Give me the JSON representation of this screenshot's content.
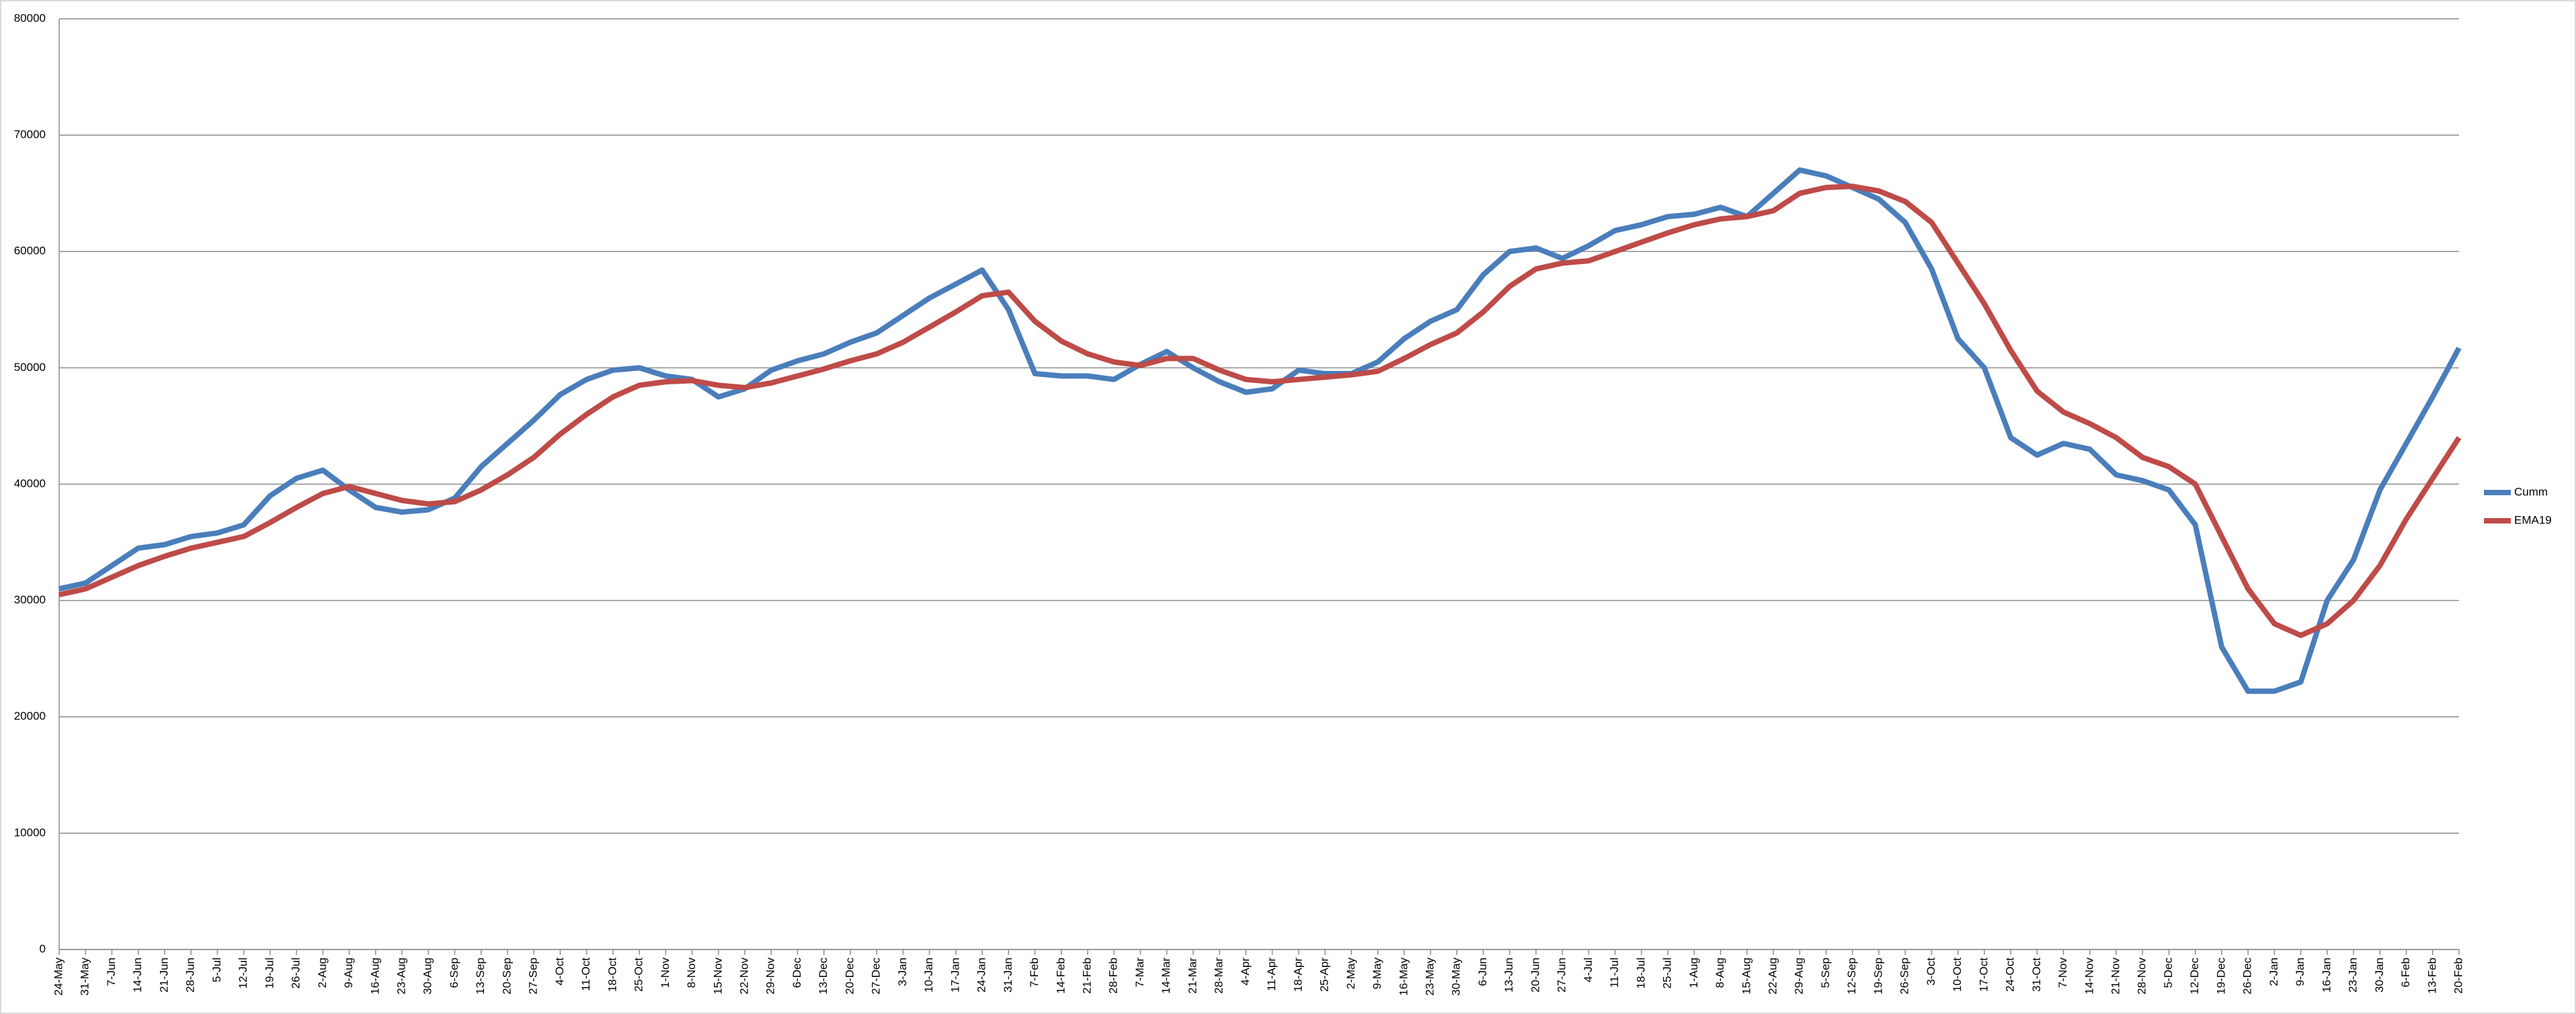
{
  "chart_data": {
    "type": "line",
    "categories": [
      "24-May",
      "31-May",
      "7-Jun",
      "14-Jun",
      "21-Jun",
      "28-Jun",
      "5-Jul",
      "12-Jul",
      "19-Jul",
      "26-Jul",
      "2-Aug",
      "9-Aug",
      "16-Aug",
      "23-Aug",
      "30-Aug",
      "6-Sep",
      "13-Sep",
      "20-Sep",
      "27-Sep",
      "4-Oct",
      "11-Oct",
      "18-Oct",
      "25-Oct",
      "1-Nov",
      "8-Nov",
      "15-Nov",
      "22-Nov",
      "29-Nov",
      "6-Dec",
      "13-Dec",
      "20-Dec",
      "27-Dec",
      "3-Jan",
      "10-Jan",
      "17-Jan",
      "24-Jan",
      "31-Jan",
      "7-Feb",
      "14-Feb",
      "21-Feb",
      "28-Feb",
      "7-Mar",
      "14-Mar",
      "21-Mar",
      "28-Mar",
      "4-Apr",
      "11-Apr",
      "18-Apr",
      "25-Apr",
      "2-May",
      "9-May",
      "16-May",
      "23-May",
      "30-May",
      "6-Jun",
      "13-Jun",
      "20-Jun",
      "27-Jun",
      "4-Jul",
      "11-Jul",
      "18-Jul",
      "25-Jul",
      "1-Aug",
      "8-Aug",
      "15-Aug",
      "22-Aug",
      "29-Aug",
      "5-Sep",
      "12-Sep",
      "19-Sep",
      "26-Sep",
      "3-Oct",
      "10-Oct",
      "17-Oct",
      "24-Oct",
      "31-Oct",
      "7-Nov",
      "14-Nov",
      "21-Nov",
      "28-Nov",
      "5-Dec",
      "12-Dec",
      "19-Dec",
      "26-Dec",
      "2-Jan",
      "9-Jan",
      "16-Jan",
      "23-Jan",
      "30-Jan",
      "6-Feb",
      "13-Feb",
      "20-Feb"
    ],
    "series": [
      {
        "name": "Cumm",
        "color": "#4a7ebb",
        "values": [
          31000,
          31500,
          33000,
          34500,
          34800,
          35500,
          35800,
          36500,
          39000,
          40500,
          41200,
          39500,
          38000,
          37600,
          37800,
          38800,
          41500,
          43500,
          45500,
          47700,
          49000,
          49800,
          50000,
          49300,
          49000,
          47500,
          48200,
          49800,
          50600,
          51200,
          52200,
          53000,
          54500,
          56000,
          57200,
          58400,
          55000,
          49500,
          49300,
          49300,
          49000,
          50300,
          51400,
          50000,
          48800,
          47900,
          48200,
          49800,
          49500,
          49500,
          50500,
          52500,
          54000,
          55000,
          58000,
          60000,
          60300,
          59400,
          60500,
          61800,
          62300,
          63000,
          63200,
          63800,
          63000,
          65000,
          67000,
          66500,
          65500,
          64500,
          62500,
          58500,
          52500,
          50000,
          44000,
          42500,
          43500,
          43000,
          40800,
          40300,
          39500,
          36500,
          26000,
          22200,
          22200,
          23000,
          30000,
          33500,
          39500,
          43500,
          47500,
          51700
        ]
      },
      {
        "name": "EMA19",
        "color": "#be4b48",
        "values": [
          30500,
          31000,
          32000,
          33000,
          33800,
          34500,
          35000,
          35500,
          36700,
          38000,
          39200,
          39800,
          39200,
          38600,
          38300,
          38500,
          39500,
          40800,
          42300,
          44300,
          46000,
          47500,
          48500,
          48800,
          48900,
          48500,
          48300,
          48700,
          49300,
          49900,
          50600,
          51200,
          52200,
          53500,
          54800,
          56200,
          56500,
          54000,
          52300,
          51200,
          50500,
          50200,
          50800,
          50800,
          49800,
          49000,
          48800,
          49000,
          49200,
          49400,
          49700,
          50800,
          52000,
          53000,
          54800,
          57000,
          58500,
          59000,
          59200,
          60000,
          60800,
          61600,
          62300,
          62800,
          63000,
          63500,
          65000,
          65500,
          65600,
          65200,
          64300,
          62500,
          59000,
          55500,
          51500,
          48000,
          46200,
          45200,
          44000,
          42300,
          41500,
          40000,
          35500,
          31000,
          28000,
          27000,
          28000,
          30000,
          33000,
          37000,
          40500,
          44000
        ]
      }
    ],
    "ylim": [
      0,
      80000
    ],
    "yticks": [
      0,
      10000,
      20000,
      30000,
      40000,
      50000,
      60000,
      70000,
      80000
    ],
    "grid": true,
    "legend": "right"
  }
}
